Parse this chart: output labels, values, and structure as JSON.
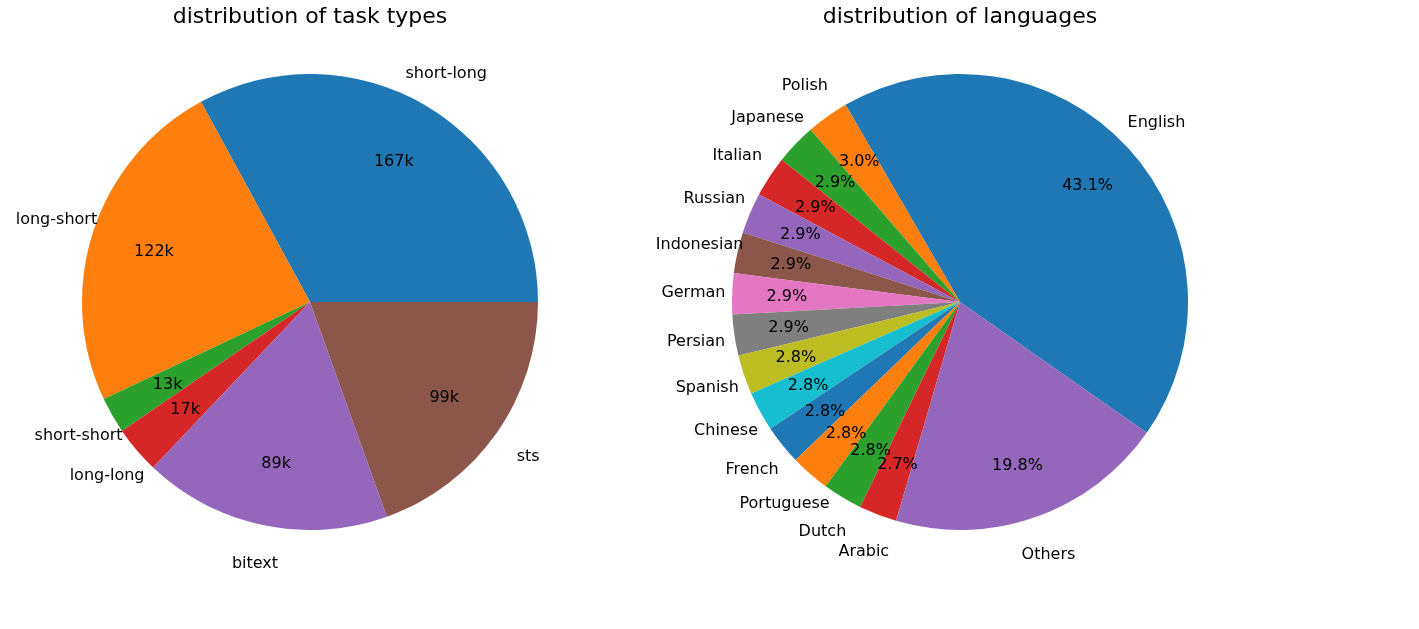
{
  "chart_data": [
    {
      "type": "pie",
      "title": "distribution of task types",
      "categories": [
        "short-long",
        "long-short",
        "short-short",
        "long-long",
        "bitext",
        "sts"
      ],
      "values": [
        167,
        122,
        13,
        17,
        89,
        99
      ],
      "value_labels": [
        "167k",
        "122k",
        "13k",
        "17k",
        "89k",
        "99k"
      ],
      "colors": [
        "#1f77b4",
        "#ff7f0e",
        "#2ca02c",
        "#d62728",
        "#9467bd",
        "#8c564b"
      ]
    },
    {
      "type": "pie",
      "title": "distribution of languages",
      "categories": [
        "English",
        "Polish",
        "Japanese",
        "Italian",
        "Russian",
        "Indonesian",
        "German",
        "Persian",
        "Spanish",
        "Chinese",
        "French",
        "Portuguese",
        "Dutch",
        "Arabic",
        "Others"
      ],
      "values": [
        43.1,
        3.0,
        2.9,
        2.9,
        2.9,
        2.9,
        2.9,
        2.9,
        2.8,
        2.8,
        2.8,
        2.8,
        2.8,
        2.7,
        19.8
      ],
      "value_labels": [
        "43.1%",
        "3.0%",
        "2.9%",
        "2.9%",
        "2.9%",
        "2.9%",
        "2.9%",
        "2.9%",
        "2.8%",
        "2.8%",
        "2.8%",
        "2.8%",
        "2.8%",
        "2.7%",
        "19.8%"
      ],
      "colors": [
        "#1f77b4",
        "#ff7f0e",
        "#2ca02c",
        "#d62728",
        "#9467bd",
        "#8c564b",
        "#e377c2",
        "#7f7f7f",
        "#bcbd22",
        "#17becf",
        "#1f77b4",
        "#ff7f0e",
        "#2ca02c",
        "#d62728",
        "#9467bd"
      ]
    }
  ]
}
